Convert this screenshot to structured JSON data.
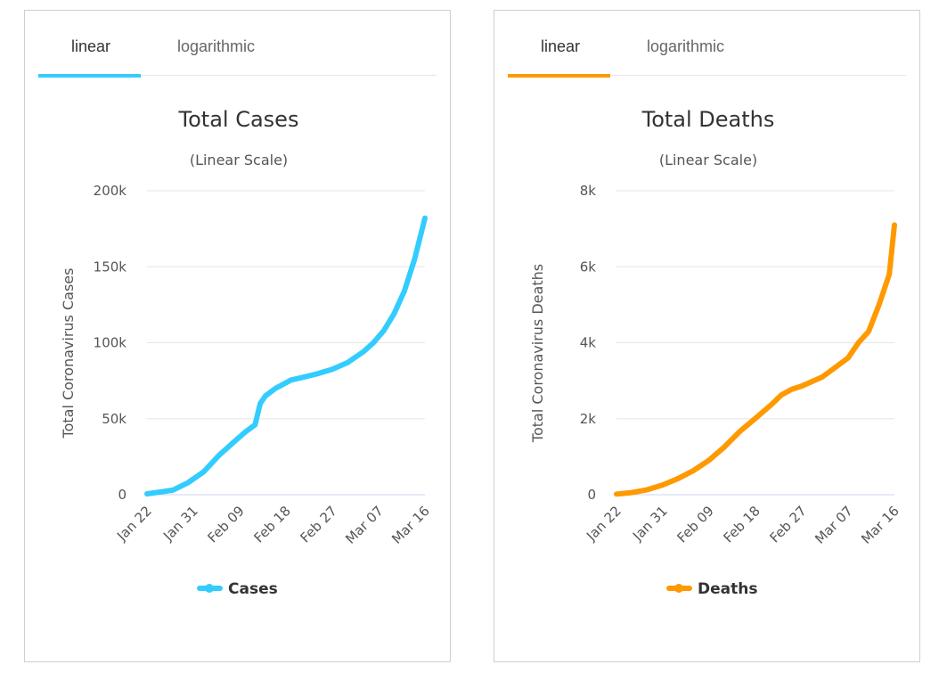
{
  "panels": [
    {
      "tabs": [
        {
          "label": "linear"
        },
        {
          "label": "logarithmic"
        }
      ],
      "active_tab": 0,
      "accent": "#33ccff"
    },
    {
      "tabs": [
        {
          "label": "linear"
        },
        {
          "label": "logarithmic"
        }
      ],
      "active_tab": 0,
      "accent": "#ff9900"
    }
  ],
  "chart_data": [
    {
      "type": "line",
      "title": "Total Cases",
      "subtitle": "(Linear Scale)",
      "ylabel": "Total Coronavirus Cases",
      "xlabel": "",
      "x_ticks": [
        "Jan 22",
        "Jan 31",
        "Feb 09",
        "Feb 18",
        "Feb 27",
        "Mar 07",
        "Mar 16"
      ],
      "y_ticks": [
        {
          "value": 0,
          "label": "0"
        },
        {
          "value": 50000,
          "label": "50k"
        },
        {
          "value": 100000,
          "label": "100k"
        },
        {
          "value": 150000,
          "label": "150k"
        },
        {
          "value": 200000,
          "label": "200k"
        }
      ],
      "ylim": [
        0,
        200000
      ],
      "grid": true,
      "legend": "bottom-center",
      "series": [
        {
          "name": "Cases",
          "color": "#33ccff",
          "points": [
            [
              "Jan 22",
              580
            ],
            [
              "Jan 25",
              2000
            ],
            [
              "Jan 27",
              3000
            ],
            [
              "Jan 30",
              8000
            ],
            [
              "Feb 02",
              15000
            ],
            [
              "Feb 05",
              26000
            ],
            [
              "Feb 08",
              35000
            ],
            [
              "Feb 10",
              41000
            ],
            [
              "Feb 12",
              46000
            ],
            [
              "Feb 13",
              60000
            ],
            [
              "Feb 14",
              65000
            ],
            [
              "Feb 16",
              70000
            ],
            [
              "Feb 19",
              75500
            ],
            [
              "Feb 21",
              77000
            ],
            [
              "Feb 24",
              79500
            ],
            [
              "Feb 27",
              82500
            ],
            [
              "Mar 01",
              87000
            ],
            [
              "Mar 04",
              94000
            ],
            [
              "Mar 06",
              100000
            ],
            [
              "Mar 08",
              108000
            ],
            [
              "Mar 10",
              119000
            ],
            [
              "Mar 12",
              134000
            ],
            [
              "Mar 14",
              155000
            ],
            [
              "Mar 16",
              182000
            ]
          ]
        }
      ]
    },
    {
      "type": "line",
      "title": "Total Deaths",
      "subtitle": "(Linear Scale)",
      "ylabel": "Total Coronavirus Deaths",
      "xlabel": "",
      "x_ticks": [
        "Jan 22",
        "Jan 31",
        "Feb 09",
        "Feb 18",
        "Feb 27",
        "Mar 07",
        "Mar 16"
      ],
      "y_ticks": [
        {
          "value": 0,
          "label": "0"
        },
        {
          "value": 2000,
          "label": "2k"
        },
        {
          "value": 4000,
          "label": "4k"
        },
        {
          "value": 6000,
          "label": "6k"
        },
        {
          "value": 8000,
          "label": "8k"
        }
      ],
      "ylim": [
        0,
        8000
      ],
      "grid": true,
      "legend": "bottom-center",
      "series": [
        {
          "name": "Deaths",
          "color": "#ff9900",
          "points": [
            [
              "Jan 22",
              17
            ],
            [
              "Jan 25",
              56
            ],
            [
              "Jan 28",
              132
            ],
            [
              "Jan 31",
              259
            ],
            [
              "Feb 03",
              427
            ],
            [
              "Feb 06",
              638
            ],
            [
              "Feb 09",
              910
            ],
            [
              "Feb 12",
              1260
            ],
            [
              "Feb 15",
              1670
            ],
            [
              "Feb 18",
              2010
            ],
            [
              "Feb 21",
              2360
            ],
            [
              "Feb 23",
              2620
            ],
            [
              "Feb 25",
              2770
            ],
            [
              "Feb 27",
              2860
            ],
            [
              "Mar 02",
              3100
            ],
            [
              "Mar 05",
              3400
            ],
            [
              "Mar 07",
              3600
            ],
            [
              "Mar 09",
              4000
            ],
            [
              "Mar 11",
              4300
            ],
            [
              "Mar 13",
              5000
            ],
            [
              "Mar 15",
              5800
            ],
            [
              "Mar 16",
              7100
            ]
          ]
        }
      ]
    }
  ]
}
